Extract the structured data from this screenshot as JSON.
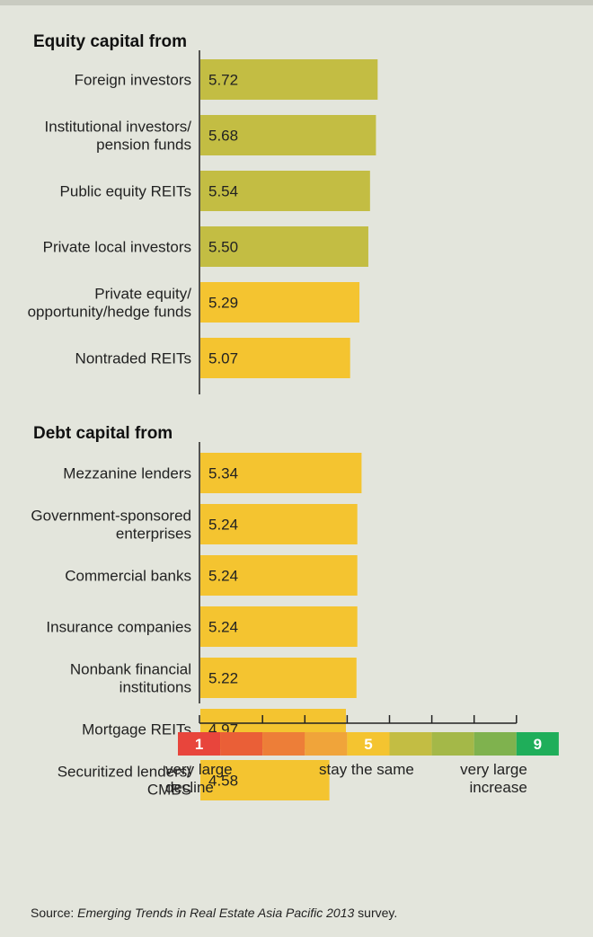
{
  "chart_data": {
    "type": "bar",
    "orientation": "horizontal",
    "xlim": [
      1,
      9
    ],
    "groups": [
      {
        "title": "Equity capital from",
        "categories": [
          [
            "Foreign investors"
          ],
          [
            "Institutional investors/",
            "pension funds"
          ],
          [
            "Public equity REITs"
          ],
          [
            "Private local investors"
          ],
          [
            "Private equity/",
            "opportunity/hedge funds"
          ],
          [
            "Nontraded REITs"
          ]
        ],
        "values": [
          5.72,
          5.68,
          5.54,
          5.5,
          5.29,
          5.07
        ],
        "value_labels": [
          "5.72",
          "5.68",
          "5.54",
          "5.50",
          "5.29",
          "5.07"
        ]
      },
      {
        "title": "Debt capital from",
        "categories": [
          [
            "Mezzanine lenders"
          ],
          [
            "Government-sponsored",
            "enterprises"
          ],
          [
            "Commercial banks"
          ],
          [
            "Insurance companies"
          ],
          [
            "Nonbank financial",
            "institutions"
          ],
          [
            "Mortgage REITs"
          ],
          [
            "Securitized lenders/",
            "CMBS"
          ]
        ],
        "values": [
          5.34,
          5.24,
          5.24,
          5.24,
          5.22,
          4.97,
          4.58
        ],
        "value_labels": [
          "5.34",
          "5.24",
          "5.24",
          "5.24",
          "5.22",
          "4.97",
          "4.58"
        ]
      }
    ],
    "color_threshold": 5.5,
    "bar_color_high": "#c3bd43",
    "bar_color_low": "#f4c430",
    "scale": {
      "colors": [
        "#e8453c",
        "#ea5f37",
        "#ed7e38",
        "#f0a43a",
        "#f4c430",
        "#c3bd43",
        "#a4b848",
        "#7fb24e",
        "#1fae5a"
      ],
      "labels": [
        "1",
        "",
        "",
        "",
        "5",
        "",
        "",
        "",
        "9"
      ],
      "captions": [
        {
          "lines": [
            "very large",
            "decline"
          ],
          "anchor": "start"
        },
        {
          "lines": [
            "stay the same"
          ],
          "anchor": "middle"
        },
        {
          "lines": [
            "very large",
            "increase"
          ],
          "anchor": "end"
        }
      ]
    }
  },
  "source": {
    "prefix": "Source: ",
    "title": "Emerging Trends in Real Estate Asia Pacific 2013",
    "suffix": " survey."
  }
}
